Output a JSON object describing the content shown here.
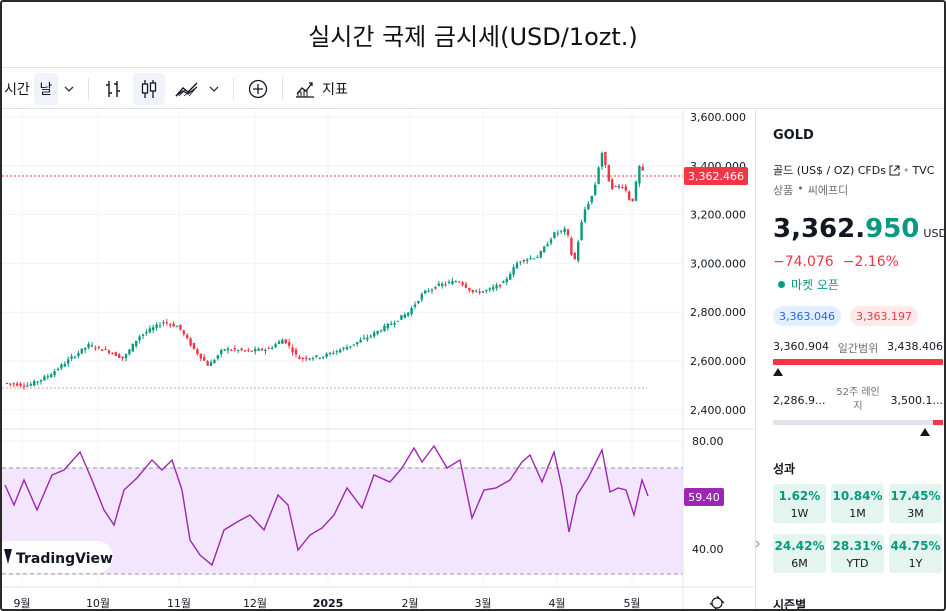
{
  "page_title": "실시간 국제 금시세(USD/1ozt.)",
  "toolbar": {
    "interval_label": "시간",
    "interval_value": "날",
    "indicators_label": "지표"
  },
  "chart": {
    "price_ticks": [
      "3,600.000",
      "3,400.000",
      "3,200.000",
      "3,000.000",
      "2,800.000",
      "2,600.000",
      "2,400.000"
    ],
    "rsi_ticks": [
      "80.00",
      "40.00"
    ],
    "last_price_label": "3,362.466",
    "rsi_value_label": "59.40",
    "x_labels": [
      "9월",
      "10월",
      "11월",
      "12월",
      "2025",
      "2월",
      "3월",
      "4월",
      "5월"
    ],
    "watermark": "TradingView",
    "up_color": "#089981",
    "down_color": "#f23645",
    "rsi_color": "#9c27b0"
  },
  "sidebar": {
    "symbol": "GOLD",
    "description": "골드 (US$ / OZ) CFDs",
    "source": "TVC",
    "category": "상품",
    "provider": "씨에프디",
    "price_main": "3,362.",
    "price_decimal": "950",
    "currency": "USD",
    "change_abs": "−74.076",
    "change_pct": "−2.16%",
    "market_status": "마켓 오픈",
    "bid": "3,363.046",
    "ask": "3,363.197",
    "day_low": "3,360.904",
    "day_range_label": "일간범위",
    "day_high": "3,438.406",
    "week52_low": "2,286.9...",
    "week52_label_1": "52주 레인",
    "week52_label_2": "지",
    "week52_high": "3,500.1...",
    "performance_title": "성과",
    "performance": [
      {
        "value": "1.62%",
        "label": "1W"
      },
      {
        "value": "10.84%",
        "label": "1M"
      },
      {
        "value": "17.45%",
        "label": "3M"
      },
      {
        "value": "24.42%",
        "label": "6M"
      },
      {
        "value": "28.31%",
        "label": "YTD"
      },
      {
        "value": "44.75%",
        "label": "1Y"
      }
    ],
    "next_section": "시즌별"
  }
}
